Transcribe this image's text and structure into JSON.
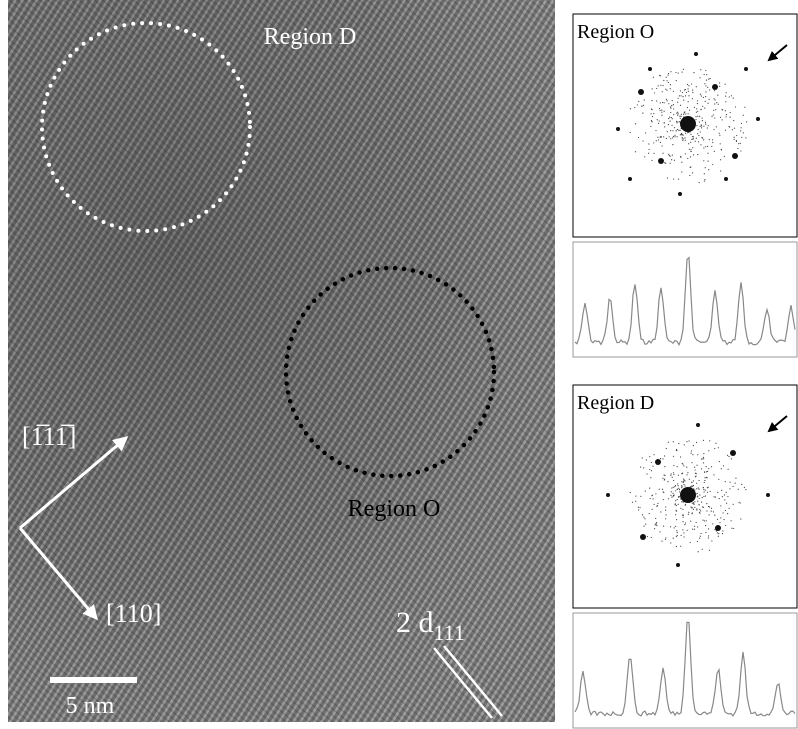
{
  "micrograph": {
    "region_d_label": "Region D",
    "region_o_label": "Region O",
    "direction_a": "[1̅11̅]",
    "direction_b": "[110]",
    "spacing_label": {
      "main": "2 d",
      "subscript": "111"
    },
    "scale_bar": "5 nm"
  },
  "panels": [
    {
      "label": "Region O"
    },
    {
      "label": "Region D"
    }
  ]
}
